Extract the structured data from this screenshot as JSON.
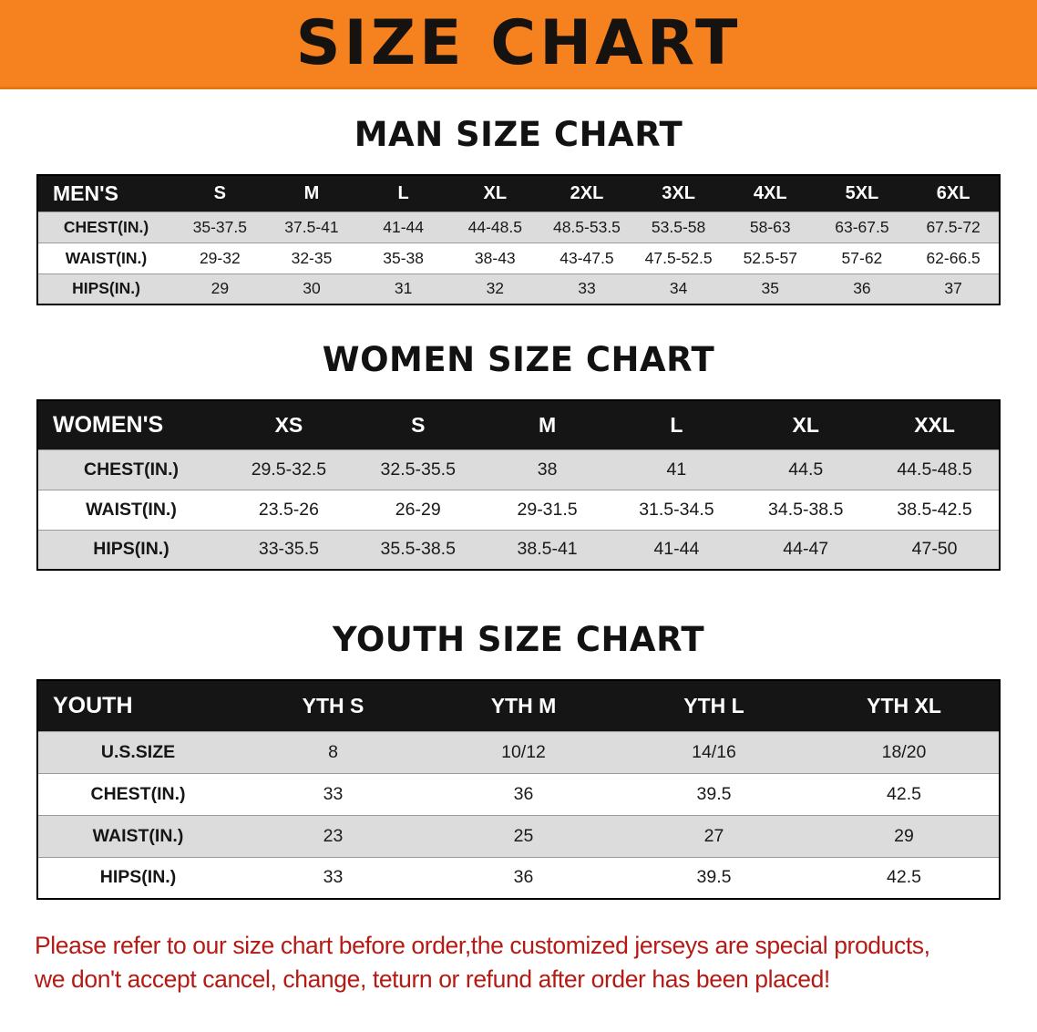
{
  "colors": {
    "banner_bg": "#F5821E",
    "header_bg": "#151515",
    "stripe": "#DCDCDC",
    "footer_red": "#B51A15"
  },
  "banner": {
    "title": "SIZE CHART"
  },
  "sections": [
    {
      "heading": "MAN SIZE CHART",
      "table": {
        "header": [
          "MEN'S",
          "S",
          "M",
          "L",
          "XL",
          "2XL",
          "3XL",
          "4XL",
          "5XL",
          "6XL"
        ],
        "rows": [
          {
            "label": "CHEST(IN.)",
            "values": [
              "35-37.5",
              "37.5-41",
              "41-44",
              "44-48.5",
              "48.5-53.5",
              "53.5-58",
              "58-63",
              "63-67.5",
              "67.5-72"
            ]
          },
          {
            "label": "WAIST(IN.)",
            "values": [
              "29-32",
              "32-35",
              "35-38",
              "38-43",
              "43-47.5",
              "47.5-52.5",
              "52.5-57",
              "57-62",
              "62-66.5"
            ]
          },
          {
            "label": "HIPS(IN.)",
            "values": [
              "29",
              "30",
              "31",
              "32",
              "33",
              "34",
              "35",
              "36",
              "37"
            ]
          }
        ]
      }
    },
    {
      "heading": "WOMEN SIZE CHART",
      "table": {
        "header": [
          "WOMEN'S",
          "XS",
          "S",
          "M",
          "L",
          "XL",
          "XXL"
        ],
        "rows": [
          {
            "label": "CHEST(IN.)",
            "values": [
              "29.5-32.5",
              "32.5-35.5",
              "38",
              "41",
              "44.5",
              "44.5-48.5"
            ]
          },
          {
            "label": "WAIST(IN.)",
            "values": [
              "23.5-26",
              "26-29",
              "29-31.5",
              "31.5-34.5",
              "34.5-38.5",
              "38.5-42.5"
            ]
          },
          {
            "label": "HIPS(IN.)",
            "values": [
              "33-35.5",
              "35.5-38.5",
              "38.5-41",
              "41-44",
              "44-47",
              "47-50"
            ]
          }
        ]
      }
    },
    {
      "heading": "YOUTH SIZE CHART",
      "table": {
        "header": [
          "YOUTH",
          "YTH S",
          "YTH M",
          "YTH L",
          "YTH XL"
        ],
        "rows": [
          {
            "label": "U.S.SIZE",
            "values": [
              "8",
              "10/12",
              "14/16",
              "18/20"
            ]
          },
          {
            "label": "CHEST(IN.)",
            "values": [
              "33",
              "36",
              "39.5",
              "42.5"
            ]
          },
          {
            "label": "WAIST(IN.)",
            "values": [
              "23",
              "25",
              "27",
              "29"
            ]
          },
          {
            "label": "HIPS(IN.)",
            "values": [
              "33",
              "36",
              "39.5",
              "42.5"
            ]
          }
        ]
      }
    }
  ],
  "footer": {
    "line1": "Please refer to our size chart before order,the customized jerseys are special products,",
    "line2": "we don't accept cancel, change, teturn or refund after order has been placed!"
  }
}
